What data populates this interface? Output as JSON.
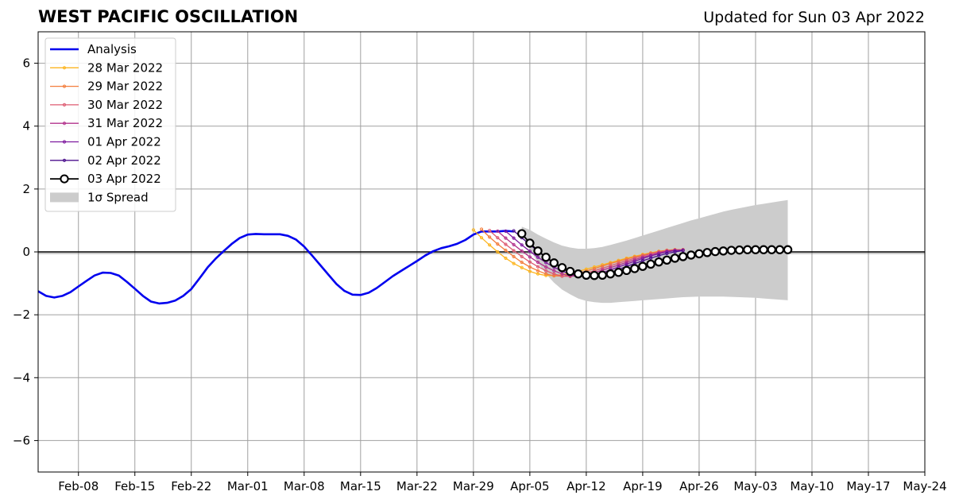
{
  "header": {
    "title": "WEST PACIFIC OSCILLATION",
    "updated": "Updated for Sun 03 Apr 2022"
  },
  "chart_data": {
    "type": "line",
    "title": "WEST PACIFIC OSCILLATION",
    "subtitle": "Updated for Sun 03 Apr 2022",
    "xlabel": "",
    "ylabel": "",
    "xlim": [
      "2022-02-03",
      "2022-05-24"
    ],
    "ylim": [
      -7,
      7
    ],
    "x_ticks": [
      "Feb-08",
      "Feb-15",
      "Feb-22",
      "Mar-01",
      "Mar-08",
      "Mar-15",
      "Mar-22",
      "Mar-29",
      "Apr-05",
      "Apr-12",
      "Apr-19",
      "Apr-26",
      "May-03",
      "May-10",
      "May-17",
      "May-24"
    ],
    "y_ticks": [
      -6,
      -4,
      -2,
      0,
      2,
      4,
      6
    ],
    "grid": true,
    "legend_position": "top-left",
    "analysis": {
      "name": "Analysis",
      "color": "#0000ee",
      "points": [
        [
          "2022-02-03",
          -1.25
        ],
        [
          "2022-02-04",
          -1.4
        ],
        [
          "2022-02-05",
          -1.45
        ],
        [
          "2022-02-06",
          -1.4
        ],
        [
          "2022-02-07",
          -1.28
        ],
        [
          "2022-02-08",
          -1.1
        ],
        [
          "2022-02-09",
          -0.92
        ],
        [
          "2022-02-10",
          -0.75
        ],
        [
          "2022-02-11",
          -0.66
        ],
        [
          "2022-02-12",
          -0.67
        ],
        [
          "2022-02-13",
          -0.75
        ],
        [
          "2022-02-14",
          -0.95
        ],
        [
          "2022-02-15",
          -1.17
        ],
        [
          "2022-02-16",
          -1.4
        ],
        [
          "2022-02-17",
          -1.58
        ],
        [
          "2022-02-18",
          -1.64
        ],
        [
          "2022-02-19",
          -1.62
        ],
        [
          "2022-02-20",
          -1.55
        ],
        [
          "2022-02-21",
          -1.4
        ],
        [
          "2022-02-22",
          -1.18
        ],
        [
          "2022-02-23",
          -0.85
        ],
        [
          "2022-02-24",
          -0.5
        ],
        [
          "2022-02-25",
          -0.22
        ],
        [
          "2022-02-26",
          0.02
        ],
        [
          "2022-02-27",
          0.25
        ],
        [
          "2022-02-28",
          0.44
        ],
        [
          "2022-03-01",
          0.55
        ],
        [
          "2022-03-02",
          0.57
        ],
        [
          "2022-03-03",
          0.56
        ],
        [
          "2022-03-04",
          0.56
        ],
        [
          "2022-03-05",
          0.56
        ],
        [
          "2022-03-06",
          0.51
        ],
        [
          "2022-03-07",
          0.39
        ],
        [
          "2022-03-08",
          0.17
        ],
        [
          "2022-03-09",
          -0.12
        ],
        [
          "2022-03-10",
          -0.42
        ],
        [
          "2022-03-11",
          -0.72
        ],
        [
          "2022-03-12",
          -1.02
        ],
        [
          "2022-03-13",
          -1.24
        ],
        [
          "2022-03-14",
          -1.36
        ],
        [
          "2022-03-15",
          -1.37
        ],
        [
          "2022-03-16",
          -1.3
        ],
        [
          "2022-03-17",
          -1.15
        ],
        [
          "2022-03-18",
          -0.96
        ],
        [
          "2022-03-19",
          -0.77
        ],
        [
          "2022-03-20",
          -0.61
        ],
        [
          "2022-03-21",
          -0.45
        ],
        [
          "2022-03-22",
          -0.29
        ],
        [
          "2022-03-23",
          -0.12
        ],
        [
          "2022-03-24",
          0.02
        ],
        [
          "2022-03-25",
          0.12
        ],
        [
          "2022-03-26",
          0.18
        ],
        [
          "2022-03-27",
          0.26
        ],
        [
          "2022-03-28",
          0.38
        ],
        [
          "2022-03-29",
          0.55
        ],
        [
          "2022-03-30",
          0.65
        ],
        [
          "2022-03-31",
          0.65
        ],
        [
          "2022-04-01",
          0.65
        ],
        [
          "2022-04-02",
          0.67
        ],
        [
          "2022-04-03",
          0.65
        ]
      ]
    },
    "forecasts": [
      {
        "name": "28 Mar 2022",
        "color": "#fcb520",
        "start": "2022-03-29",
        "values": [
          0.7,
          0.45,
          0.22,
          0.0,
          -0.2,
          -0.37,
          -0.5,
          -0.62,
          -0.7,
          -0.75,
          -0.75,
          -0.72,
          -0.68,
          -0.62,
          -0.55,
          -0.48,
          -0.41,
          -0.34,
          -0.27,
          -0.2,
          -0.14,
          -0.08,
          -0.03,
          0.02,
          0.05,
          0.07,
          0.07
        ]
      },
      {
        "name": "29 Mar 2022",
        "color": "#f37d3c",
        "start": "2022-03-30",
        "values": [
          0.72,
          0.47,
          0.25,
          0.05,
          -0.15,
          -0.33,
          -0.48,
          -0.6,
          -0.7,
          -0.76,
          -0.77,
          -0.74,
          -0.68,
          -0.61,
          -0.53,
          -0.45,
          -0.37,
          -0.3,
          -0.23,
          -0.16,
          -0.1,
          -0.04,
          0.01,
          0.05,
          0.07,
          0.07
        ]
      },
      {
        "name": "30 Mar 2022",
        "color": "#dd5a71",
        "start": "2022-03-31",
        "values": [
          0.68,
          0.45,
          0.24,
          0.04,
          -0.15,
          -0.32,
          -0.47,
          -0.6,
          -0.7,
          -0.77,
          -0.78,
          -0.74,
          -0.68,
          -0.6,
          -0.52,
          -0.44,
          -0.36,
          -0.28,
          -0.2,
          -0.13,
          -0.06,
          0.0,
          0.04,
          0.06,
          0.07
        ]
      },
      {
        "name": "31 Mar 2022",
        "color": "#b2328c",
        "start": "2022-04-01",
        "values": [
          0.66,
          0.44,
          0.23,
          0.03,
          -0.16,
          -0.33,
          -0.48,
          -0.6,
          -0.7,
          -0.76,
          -0.77,
          -0.73,
          -0.66,
          -0.58,
          -0.5,
          -0.42,
          -0.33,
          -0.25,
          -0.17,
          -0.1,
          -0.03,
          0.02,
          0.05,
          0.06
        ]
      },
      {
        "name": "01 Apr 2022",
        "color": "#7e1a9e",
        "start": "2022-04-02",
        "values": [
          0.66,
          0.44,
          0.22,
          0.02,
          -0.17,
          -0.34,
          -0.49,
          -0.61,
          -0.71,
          -0.77,
          -0.78,
          -0.74,
          -0.66,
          -0.57,
          -0.48,
          -0.39,
          -0.3,
          -0.21,
          -0.13,
          -0.06,
          0.0,
          0.04,
          0.05
        ]
      },
      {
        "name": "02 Apr 2022",
        "color": "#4b0f8d",
        "start": "2022-04-03",
        "values": [
          0.67,
          0.45,
          0.23,
          0.02,
          -0.18,
          -0.36,
          -0.51,
          -0.64,
          -0.73,
          -0.78,
          -0.79,
          -0.75,
          -0.66,
          -0.56,
          -0.46,
          -0.37,
          -0.28,
          -0.2,
          -0.12,
          -0.05,
          0.0,
          0.04
        ]
      },
      {
        "name": "03 Apr 2022",
        "color": "#000000",
        "start": "2022-04-04",
        "values": [
          0.58,
          0.28,
          0.03,
          -0.17,
          -0.35,
          -0.5,
          -0.62,
          -0.7,
          -0.74,
          -0.75,
          -0.74,
          -0.7,
          -0.65,
          -0.59,
          -0.53,
          -0.46,
          -0.39,
          -0.32,
          -0.26,
          -0.2,
          -0.15,
          -0.1,
          -0.06,
          -0.02,
          0.01,
          0.03,
          0.05,
          0.06,
          0.07,
          0.07,
          0.07,
          0.07,
          0.07,
          0.07
        ]
      }
    ],
    "spread": {
      "name": "1σ Spread",
      "color": "#cccccc",
      "start": "2022-04-04",
      "upper": [
        0.8,
        0.7,
        0.55,
        0.42,
        0.3,
        0.2,
        0.14,
        0.1,
        0.1,
        0.12,
        0.16,
        0.22,
        0.29,
        0.36,
        0.44,
        0.52,
        0.6,
        0.68,
        0.76,
        0.84,
        0.92,
        1.0,
        1.07,
        1.14,
        1.21,
        1.28,
        1.34,
        1.39,
        1.44,
        1.49,
        1.53,
        1.57,
        1.61,
        1.65
      ],
      "lower": [
        0.55,
        0.1,
        -0.35,
        -0.7,
        -0.98,
        -1.2,
        -1.35,
        -1.48,
        -1.56,
        -1.6,
        -1.62,
        -1.62,
        -1.6,
        -1.58,
        -1.56,
        -1.54,
        -1.52,
        -1.5,
        -1.48,
        -1.46,
        -1.44,
        -1.43,
        -1.42,
        -1.42,
        -1.42,
        -1.42,
        -1.43,
        -1.44,
        -1.45,
        -1.46,
        -1.48,
        -1.5,
        -1.52,
        -1.54
      ]
    }
  }
}
